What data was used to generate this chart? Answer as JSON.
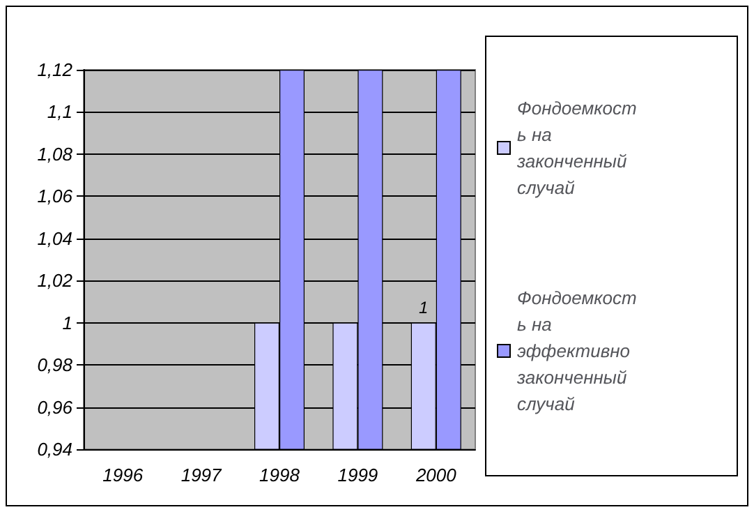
{
  "chart_data": {
    "type": "bar",
    "categories": [
      "1996",
      "1997",
      "1998",
      "1999",
      "2000"
    ],
    "series": [
      {
        "name": "Фондоемкость на законченный случай",
        "color": "#ccccff",
        "values": [
          null,
          null,
          1,
          1,
          1
        ]
      },
      {
        "name": "Фондоемкость на эффективно законченныйслучай",
        "color": "#9999ff",
        "values": [
          null,
          null,
          1.12,
          1.12,
          1.12
        ]
      }
    ],
    "ylim": [
      0.94,
      1.12
    ],
    "yticks": [
      {
        "value": 0.94,
        "label": "0,94"
      },
      {
        "value": 0.96,
        "label": "0,96"
      },
      {
        "value": 0.98,
        "label": "0,98"
      },
      {
        "value": 1,
        "label": "1"
      },
      {
        "value": 1.02,
        "label": "1,02"
      },
      {
        "value": 1.04,
        "label": "1,04"
      },
      {
        "value": 1.06,
        "label": "1,06"
      },
      {
        "value": 1.08,
        "label": "1,08"
      },
      {
        "value": 1.1,
        "label": "1,1"
      },
      {
        "value": 1.12,
        "label": "1,12"
      }
    ],
    "annotations": [
      {
        "text": "1",
        "x": "2000",
        "y": 1
      }
    ],
    "grid": true,
    "legend": "right"
  }
}
